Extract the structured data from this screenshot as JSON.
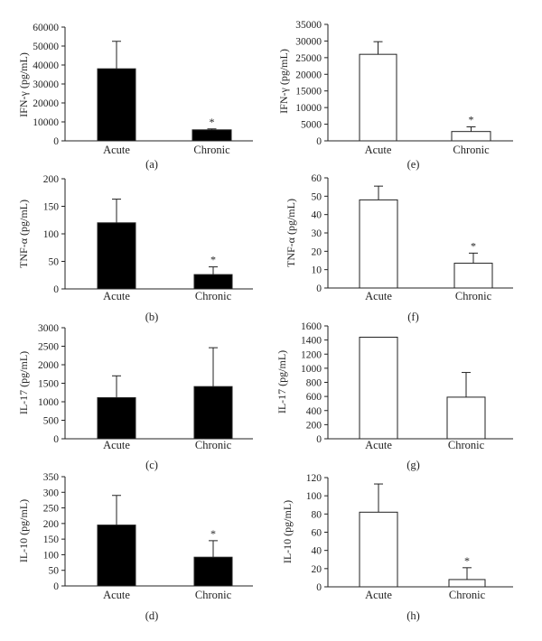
{
  "chart_data": [
    {
      "panel": "(a)",
      "type": "bar",
      "categories": [
        "Acute",
        "Chronic"
      ],
      "values": [
        38000,
        5800
      ],
      "errors": [
        14500,
        500
      ],
      "significance": [
        "",
        "*"
      ],
      "ylabel": "IFN-γ (pg/mL)",
      "ylim": [
        0,
        60000
      ],
      "yticks": [
        0,
        10000,
        20000,
        30000,
        40000,
        50000,
        60000
      ],
      "bar_color": "#000000"
    },
    {
      "panel": "(e)",
      "type": "bar",
      "categories": [
        "Acute",
        "Chronic"
      ],
      "values": [
        26000,
        2800
      ],
      "errors": [
        3800,
        1400
      ],
      "significance": [
        "",
        "*"
      ],
      "ylabel": "IFN-γ (pg/mL)",
      "ylim": [
        0,
        35000
      ],
      "yticks": [
        0,
        5000,
        10000,
        15000,
        20000,
        25000,
        30000,
        35000
      ],
      "bar_color": "#ffffff"
    },
    {
      "panel": "(b)",
      "type": "bar",
      "categories": [
        "Acute",
        "Chronic"
      ],
      "values": [
        120,
        26
      ],
      "errors": [
        43,
        14
      ],
      "significance": [
        "",
        "*"
      ],
      "ylabel": "TNF-α (pg/mL)",
      "ylim": [
        0,
        200
      ],
      "yticks": [
        0,
        50,
        100,
        150,
        200
      ],
      "bar_color": "#000000"
    },
    {
      "panel": "(f)",
      "type": "bar",
      "categories": [
        "Acute",
        "Chronic"
      ],
      "values": [
        48,
        13.5
      ],
      "errors": [
        7.5,
        5.5
      ],
      "significance": [
        "",
        "*"
      ],
      "ylabel": "TNF-α (pg/mL)",
      "ylim": [
        0,
        60
      ],
      "yticks": [
        0,
        10,
        20,
        30,
        40,
        50,
        60
      ],
      "bar_color": "#ffffff"
    },
    {
      "panel": "(c)",
      "type": "bar",
      "categories": [
        "Acute",
        "Chronic"
      ],
      "values": [
        1110,
        1410
      ],
      "errors": [
        590,
        1050
      ],
      "significance": [
        "",
        ""
      ],
      "ylabel": "IL-17 (pg/mL)",
      "ylim": [
        0,
        3000
      ],
      "yticks": [
        0,
        500,
        1000,
        1500,
        2000,
        2500,
        3000
      ],
      "bar_color": "#000000"
    },
    {
      "panel": "(g)",
      "type": "bar",
      "categories": [
        "Acute",
        "Chronic"
      ],
      "values": [
        1440,
        590
      ],
      "errors": [
        0,
        350
      ],
      "significance": [
        "",
        ""
      ],
      "ylabel": "IL-17 (pg/mL)",
      "ylim": [
        0,
        1600
      ],
      "yticks": [
        0,
        200,
        400,
        600,
        800,
        1000,
        1200,
        1400,
        1600
      ],
      "bar_color": "#ffffff"
    },
    {
      "panel": "(d)",
      "type": "bar",
      "categories": [
        "Acute",
        "Chronic"
      ],
      "values": [
        195,
        92
      ],
      "errors": [
        95,
        53
      ],
      "significance": [
        "",
        "*"
      ],
      "ylabel": "IL-10 (pg/mL)",
      "ylim": [
        0,
        350
      ],
      "yticks": [
        0,
        50,
        100,
        150,
        200,
        250,
        300,
        350
      ],
      "bar_color": "#000000"
    },
    {
      "panel": "(h)",
      "type": "bar",
      "categories": [
        "Acute",
        "Chronic"
      ],
      "values": [
        82,
        8
      ],
      "errors": [
        31,
        13
      ],
      "significance": [
        "",
        "*"
      ],
      "ylabel": "IL-10 (pg/mL)",
      "ylim": [
        0,
        120
      ],
      "yticks": [
        0,
        20,
        40,
        60,
        80,
        100,
        120
      ],
      "bar_color": "#ffffff"
    }
  ]
}
